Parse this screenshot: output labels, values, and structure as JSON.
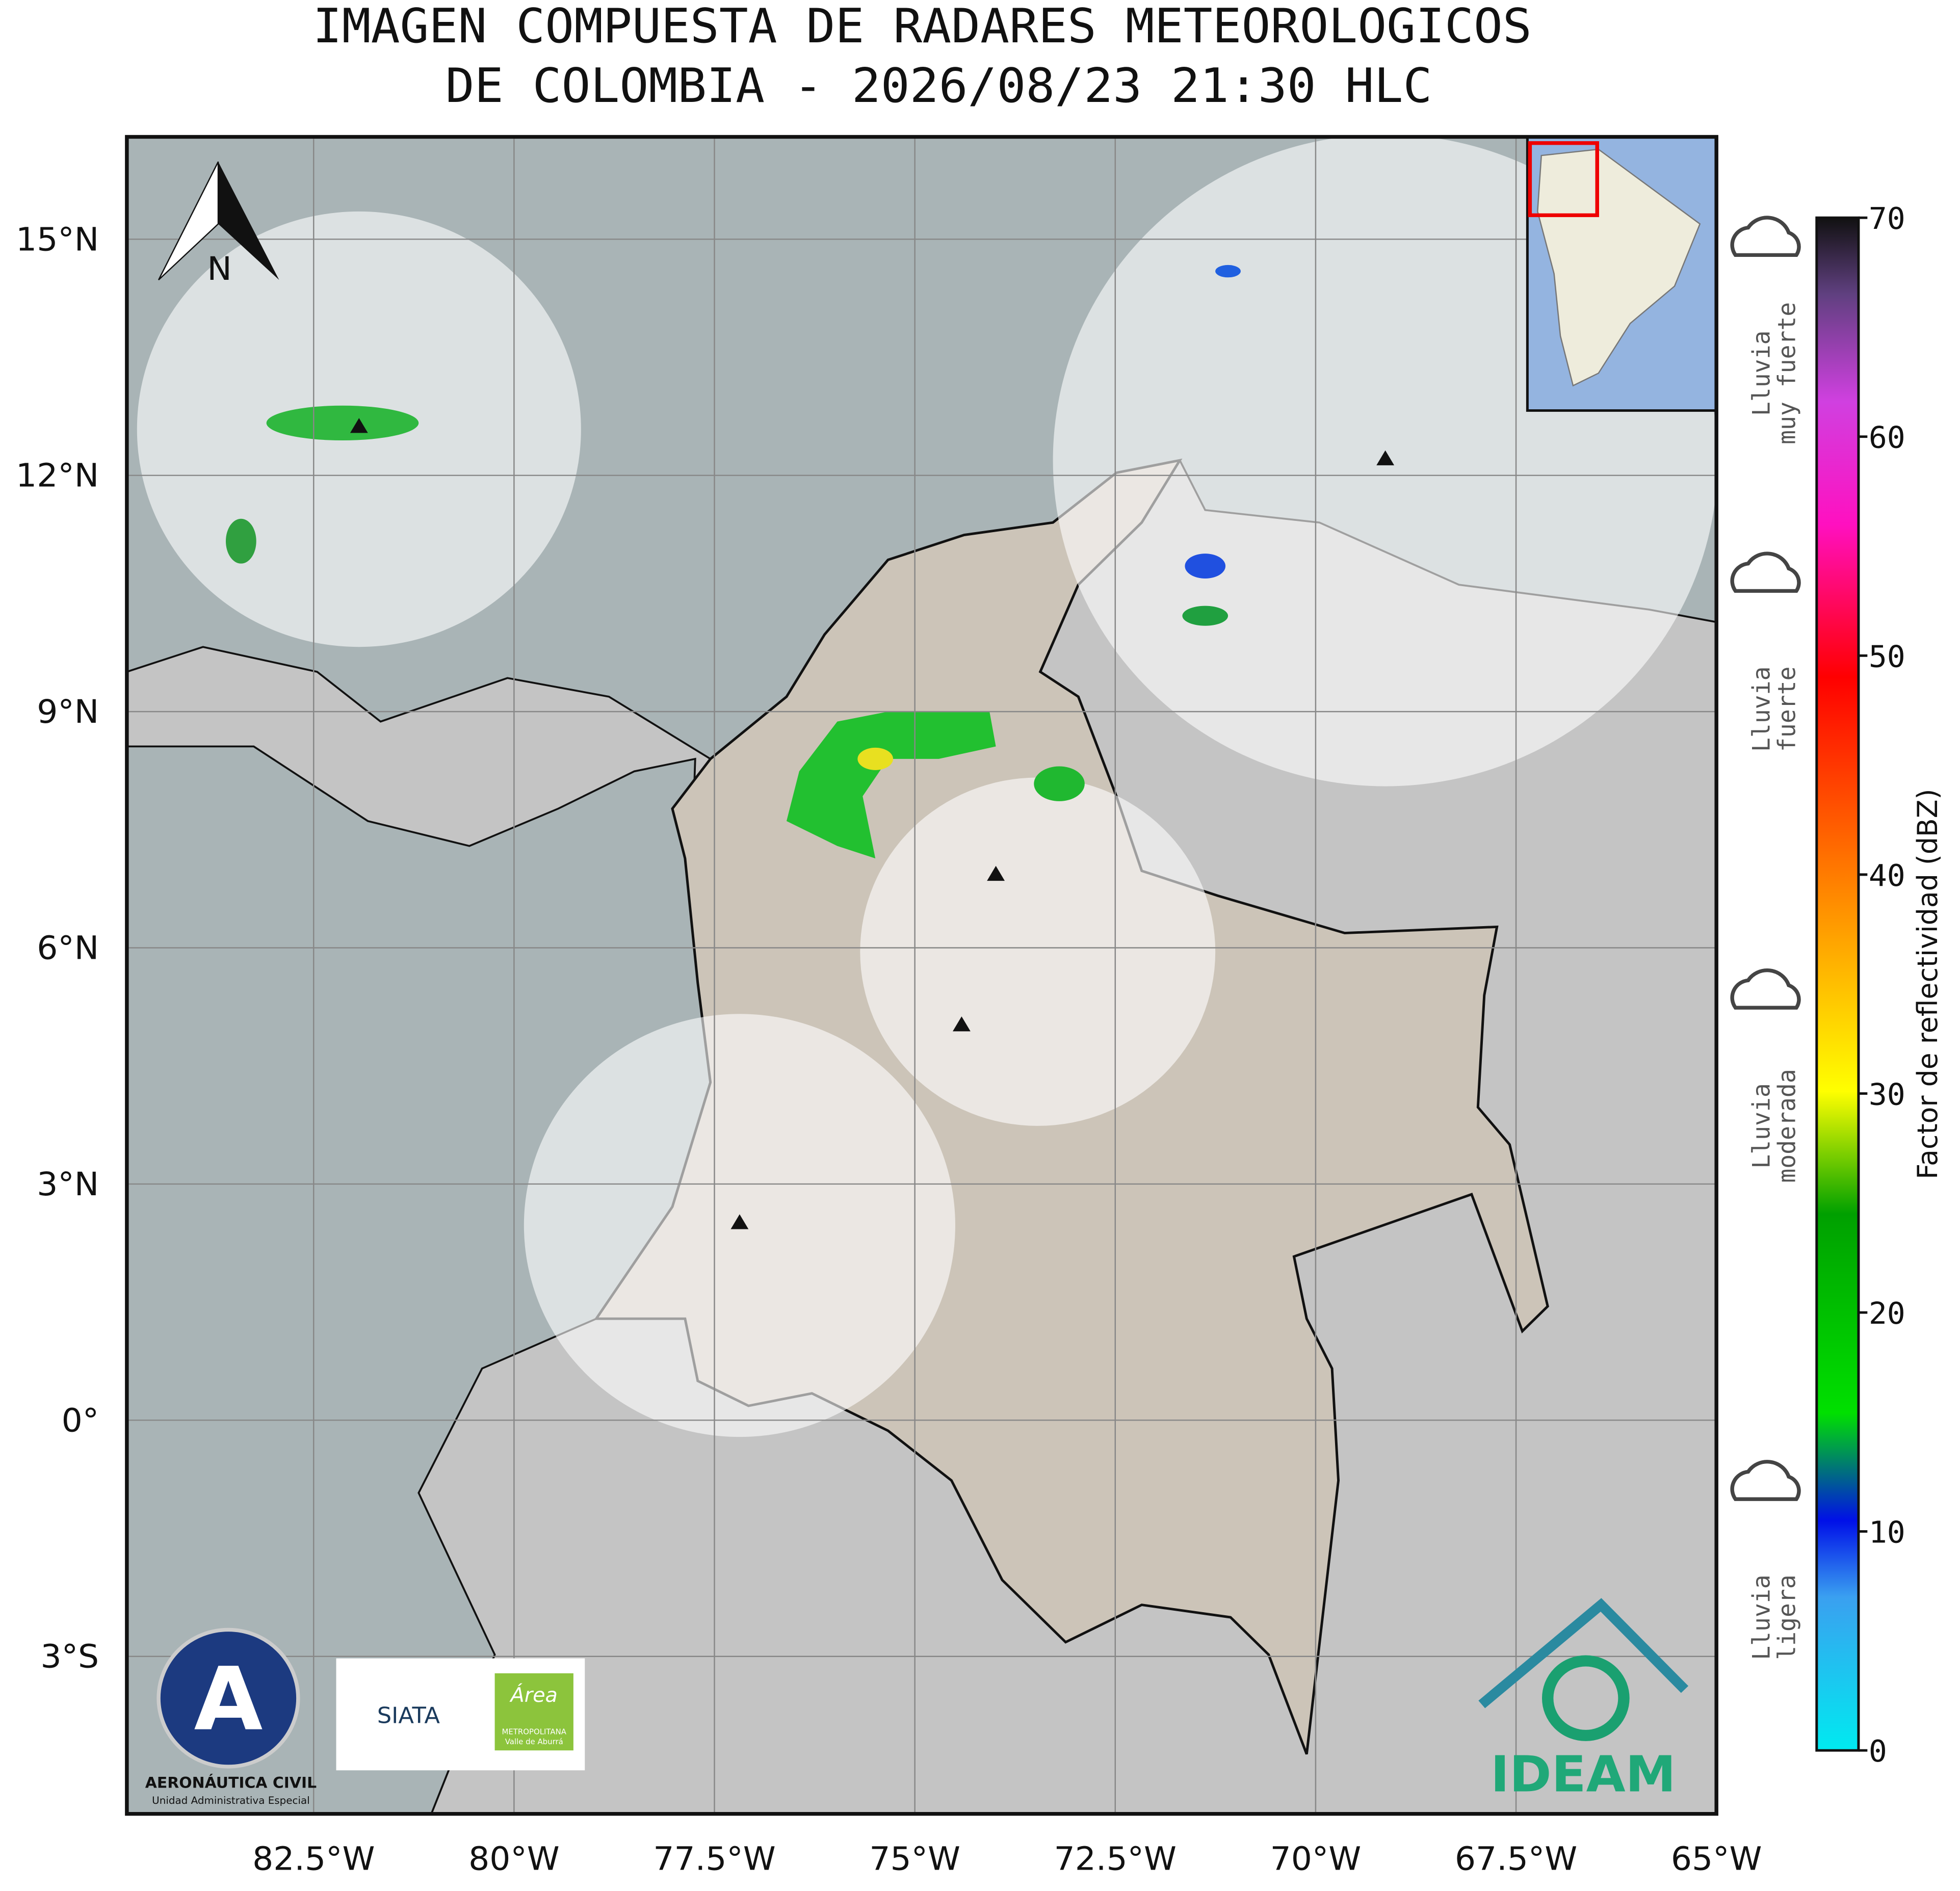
{
  "title": [
    "IMAGEN COMPUESTA DE RADARES METEOROLOGICOS",
    "DE COLOMBIA - 2026/08/23 21:30 HLC"
  ],
  "map": {
    "xlim": [
      -84.83,
      -65
    ],
    "ylim": [
      -5,
      16.3
    ],
    "xticks": [
      {
        "value": -82.5,
        "label": "82.5°W"
      },
      {
        "value": -80,
        "label": "80°W"
      },
      {
        "value": -77.5,
        "label": "77.5°W"
      },
      {
        "value": -75,
        "label": "75°W"
      },
      {
        "value": -72.5,
        "label": "72.5°W"
      },
      {
        "value": -70,
        "label": "70°W"
      },
      {
        "value": -67.5,
        "label": "67.5°W"
      },
      {
        "value": -65,
        "label": "65°W"
      }
    ],
    "yticks": [
      {
        "value": 15,
        "label": "15°N"
      },
      {
        "value": 12,
        "label": "12°N"
      },
      {
        "value": 9,
        "label": "9°N"
      },
      {
        "value": 6,
        "label": "6°N"
      },
      {
        "value": 3,
        "label": "3°N"
      },
      {
        "value": 0,
        "label": "0°"
      },
      {
        "value": -3,
        "label": "3°S"
      }
    ],
    "north_label": "N"
  },
  "colorbar": {
    "label": "Factor de reflectividad (dBZ)",
    "lim": [
      0,
      70
    ],
    "ticks": [
      0,
      10,
      20,
      30,
      40,
      50,
      60,
      70
    ]
  },
  "rain_legend": [
    [
      "Lluvia",
      "muy fuerte"
    ],
    [
      "Lluvia",
      "fuerte"
    ],
    [
      "Lluvia",
      "moderada"
    ],
    [
      "Lluvia",
      "ligera"
    ]
  ],
  "logos": {
    "aerocivil": "AERONÁUTICA CIVIL",
    "aerocivil_sub": "Unidad Administrativa Especial",
    "siata": "SIATA",
    "area": "Área",
    "area_sub1": "METROPOLITANA",
    "area_sub2": "Valle de Aburrá",
    "ideam": "IDEAM"
  }
}
